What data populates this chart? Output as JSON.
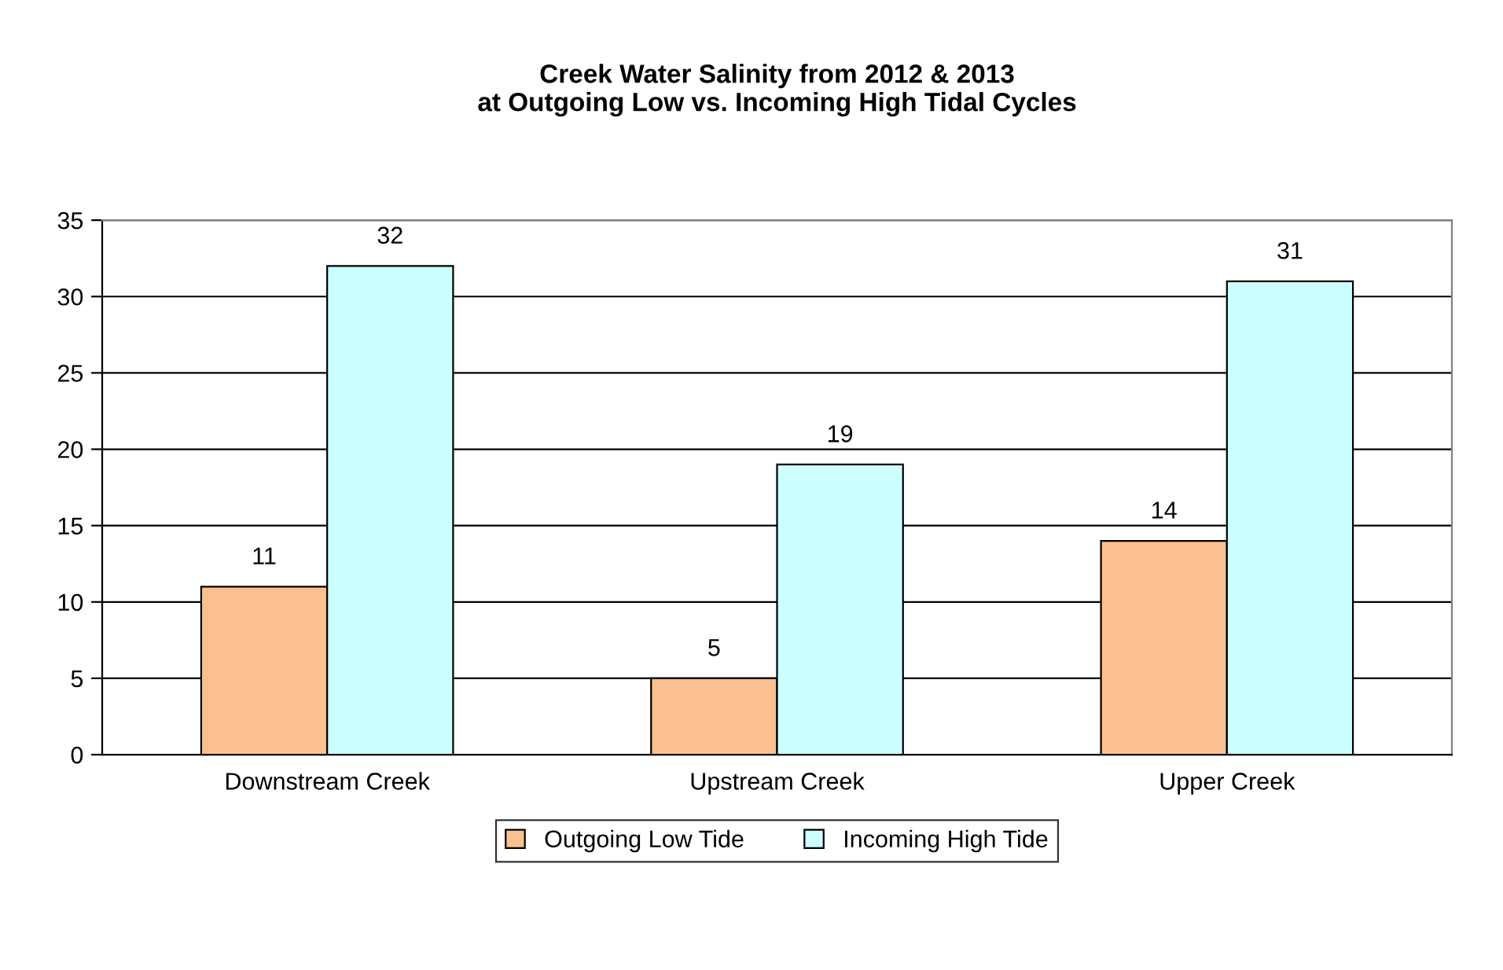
{
  "chart_data": {
    "type": "bar",
    "title": "Creek Water Salinity from 2012 & 2013\nat Outgoing Low vs. Incoming High Tidal Cycles",
    "categories": [
      "Downstream Creek",
      "Upstream Creek",
      "Upper Creek"
    ],
    "series": [
      {
        "name": "Outgoing Low Tide",
        "color": "#fac090",
        "values": [
          11,
          5,
          14
        ]
      },
      {
        "name": "Incoming High Tide",
        "color": "#ccffff",
        "values": [
          32,
          19,
          31
        ]
      }
    ],
    "ylim": [
      0,
      35
    ],
    "yticks": [
      0,
      5,
      10,
      15,
      20,
      25,
      30,
      35
    ],
    "grid": "y",
    "legend": "bottom",
    "data_labels": true
  }
}
